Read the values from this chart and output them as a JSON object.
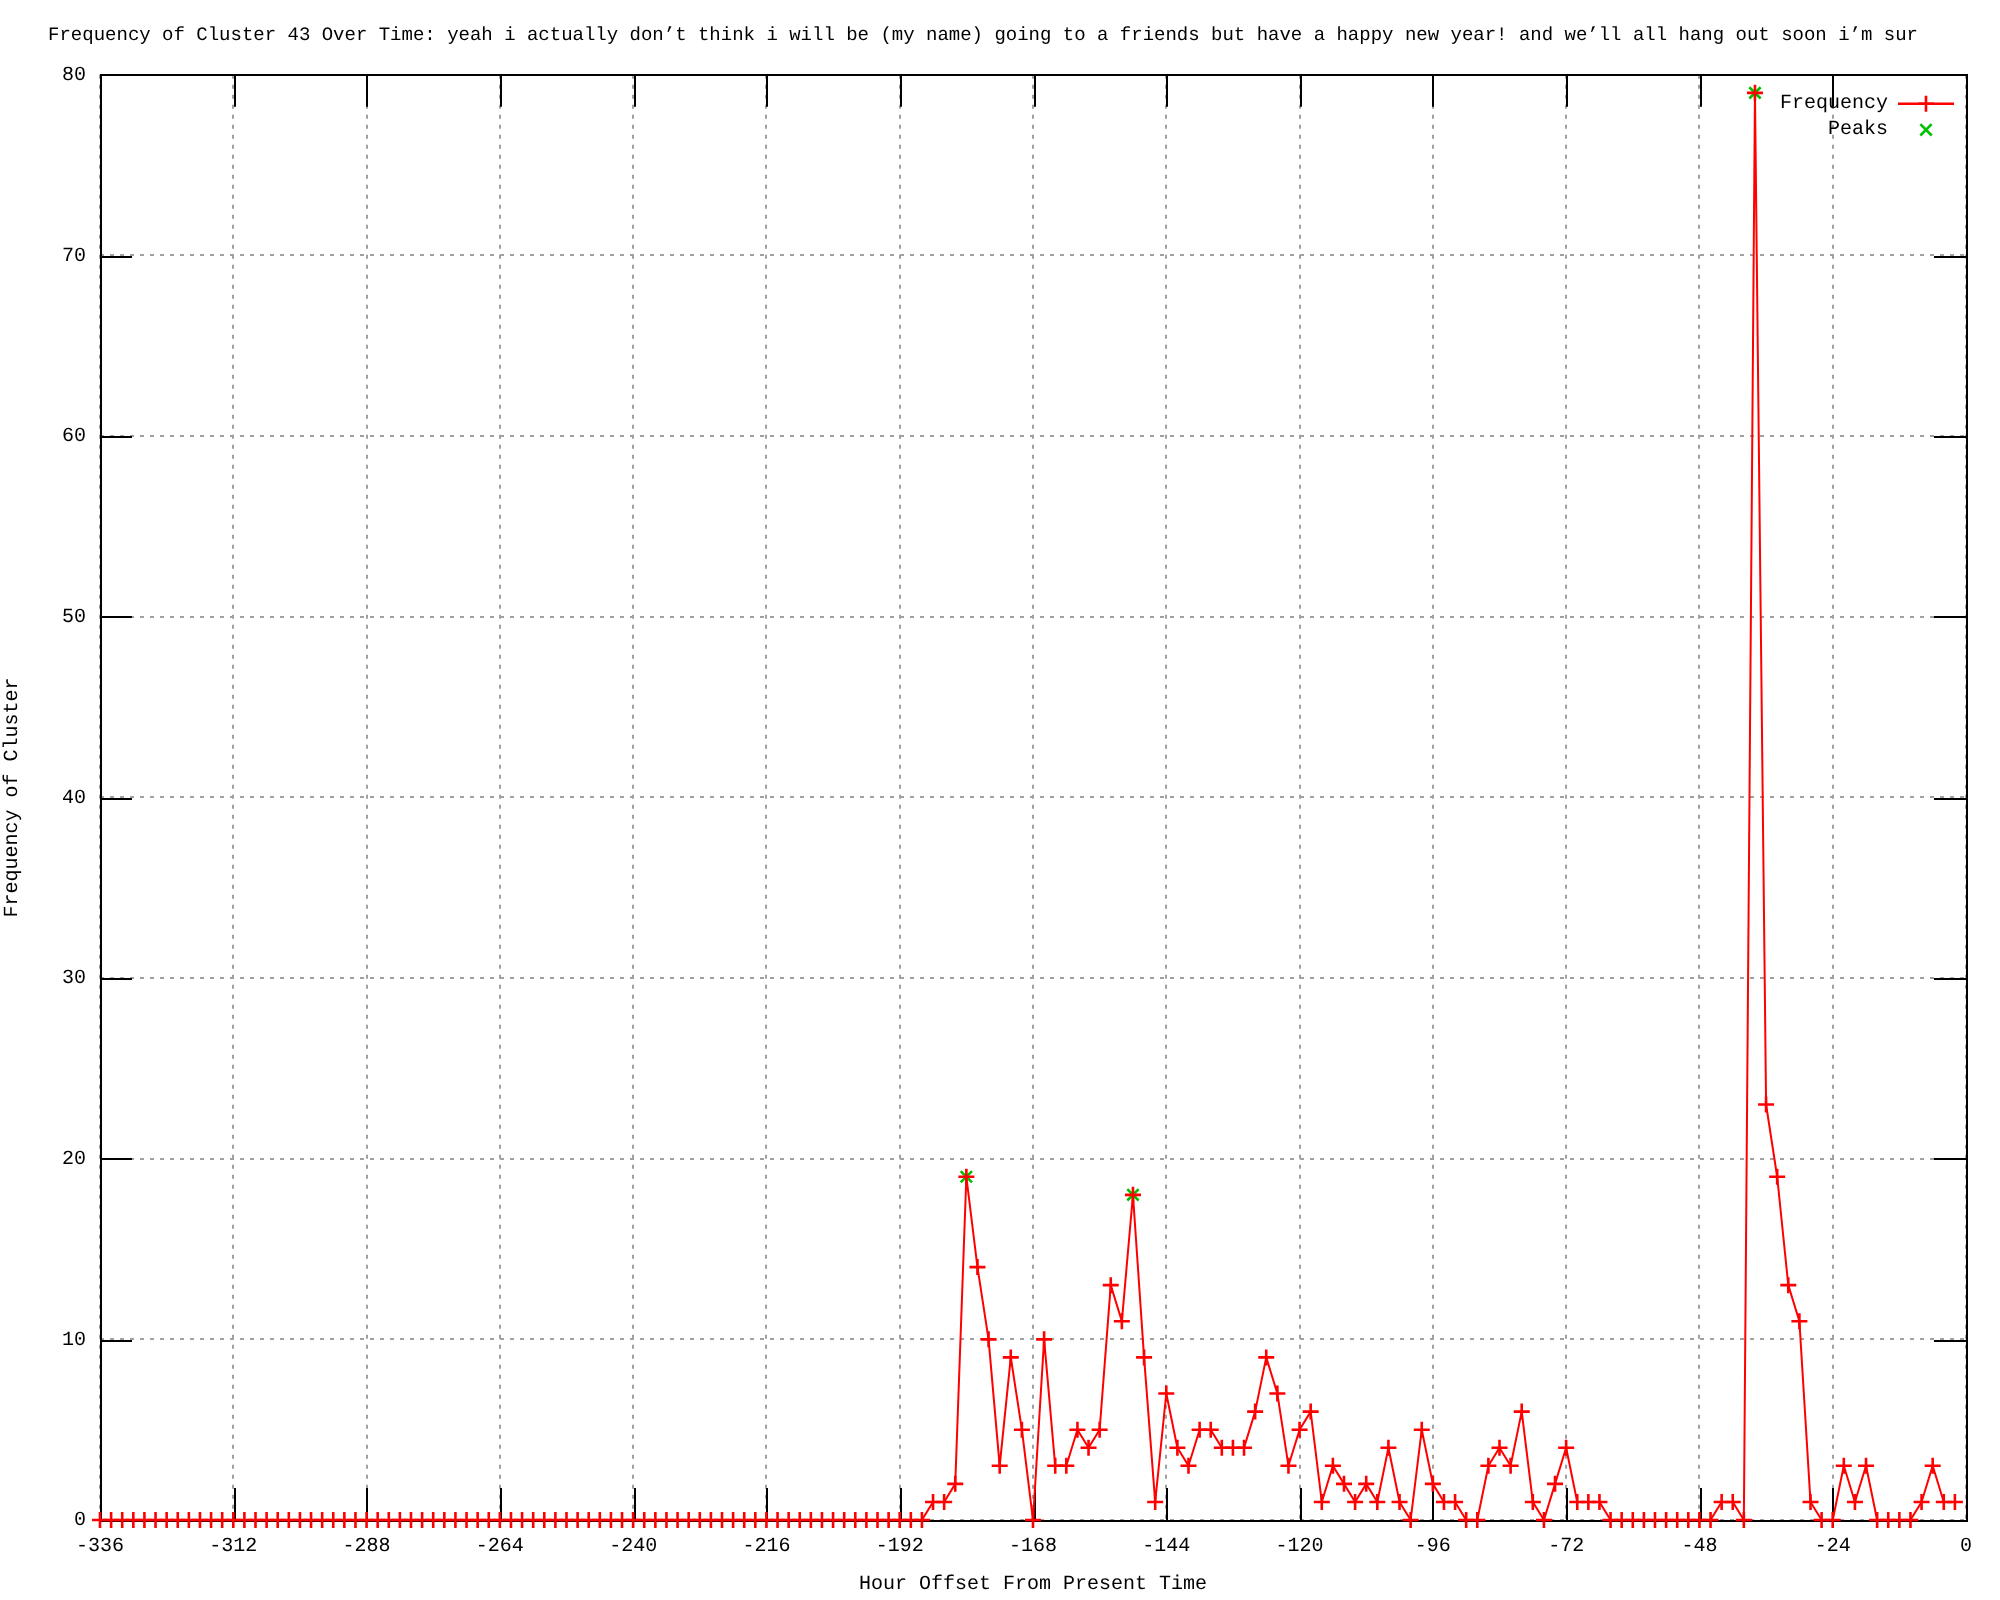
{
  "chart_data": {
    "type": "line",
    "title": "Frequency of Cluster 43 Over Time: yeah i actually don’t think i will be (my name) going to a friends but have a happy new year! and we’ll all hang out soon i’m sur",
    "xlabel": "Hour Offset From Present Time",
    "ylabel": "Frequency of Cluster",
    "xlim": [
      -336,
      0
    ],
    "xticks": [
      -336,
      -312,
      -288,
      -264,
      -240,
      -216,
      -192,
      -168,
      -144,
      -120,
      -96,
      -72,
      -48,
      -24,
      0
    ],
    "ylim": [
      0,
      80
    ],
    "yticks": [
      0,
      10,
      20,
      30,
      40,
      50,
      60,
      70,
      80
    ],
    "grid": true,
    "legend": "top right",
    "line_style": "solid",
    "series": [
      {
        "name": "Frequency",
        "marker": "cross",
        "color": "#ff0000",
        "x": [
          -336,
          -334,
          -332,
          -330,
          -328,
          -326,
          -324,
          -322,
          -320,
          -318,
          -316,
          -314,
          -312,
          -310,
          -308,
          -306,
          -304,
          -302,
          -300,
          -298,
          -296,
          -294,
          -292,
          -290,
          -288,
          -286,
          -284,
          -282,
          -280,
          -278,
          -276,
          -274,
          -272,
          -270,
          -268,
          -266,
          -264,
          -262,
          -260,
          -258,
          -256,
          -254,
          -252,
          -250,
          -248,
          -246,
          -244,
          -242,
          -240,
          -238,
          -236,
          -234,
          -232,
          -230,
          -228,
          -226,
          -224,
          -222,
          -220,
          -218,
          -216,
          -214,
          -212,
          -210,
          -208,
          -206,
          -204,
          -202,
          -200,
          -198,
          -196,
          -194,
          -192,
          -190,
          -188,
          -186,
          -184,
          -182,
          -180,
          -178,
          -176,
          -174,
          -172,
          -170,
          -168,
          -166,
          -164,
          -162,
          -160,
          -158,
          -156,
          -154,
          -152,
          -150,
          -148,
          -146,
          -144,
          -142,
          -140,
          -138,
          -136,
          -134,
          -132,
          -130,
          -128,
          -126,
          -124,
          -122,
          -120,
          -118,
          -116,
          -114,
          -112,
          -110,
          -108,
          -106,
          -104,
          -102,
          -100,
          -98,
          -96,
          -94,
          -92,
          -90,
          -88,
          -86,
          -84,
          -82,
          -80,
          -78,
          -76,
          -74,
          -72,
          -70,
          -68,
          -66,
          -64,
          -62,
          -60,
          -58,
          -56,
          -54,
          -52,
          -50,
          -48,
          -46,
          -44,
          -42,
          -40,
          -38,
          -36,
          -34,
          -32,
          -30,
          -28,
          -26,
          -24,
          -22,
          -20,
          -18,
          -16,
          -14,
          -12,
          -10,
          -8,
          -6,
          -4,
          -2
        ],
        "values": [
          0,
          0,
          0,
          0,
          0,
          0,
          0,
          0,
          0,
          0,
          0,
          0,
          0,
          0,
          0,
          0,
          0,
          0,
          0,
          0,
          0,
          0,
          0,
          0,
          0,
          0,
          0,
          0,
          0,
          0,
          0,
          0,
          0,
          0,
          0,
          0,
          0,
          0,
          0,
          0,
          0,
          0,
          0,
          0,
          0,
          0,
          0,
          0,
          0,
          0,
          0,
          0,
          0,
          0,
          0,
          0,
          0,
          0,
          0,
          0,
          0,
          0,
          0,
          0,
          0,
          0,
          0,
          0,
          0,
          0,
          0,
          0,
          0,
          0,
          0,
          1,
          1,
          2,
          19,
          14,
          10,
          3,
          9,
          5,
          0,
          10,
          3,
          3,
          5,
          4,
          5,
          13,
          11,
          18,
          9,
          1,
          7,
          4,
          3,
          5,
          5,
          4,
          4,
          4,
          6,
          9,
          7,
          3,
          5,
          6,
          1,
          3,
          2,
          1,
          2,
          1,
          4,
          1,
          0,
          5,
          2,
          1,
          1,
          0,
          0,
          3,
          4,
          3,
          6,
          1,
          0,
          2,
          4,
          1,
          1,
          1,
          0,
          0,
          0,
          0,
          0,
          0,
          0,
          0,
          0,
          0,
          1,
          1,
          0,
          79,
          23,
          19,
          13,
          11,
          1,
          0,
          0,
          3,
          1,
          3,
          0,
          0,
          0,
          0,
          1,
          3,
          1,
          1
        ]
      },
      {
        "name": "Peaks",
        "type": "scatter",
        "marker": "cross",
        "color": "#00c000",
        "x": [
          -180,
          -150,
          -38
        ],
        "values": [
          19,
          18,
          79
        ]
      }
    ]
  }
}
